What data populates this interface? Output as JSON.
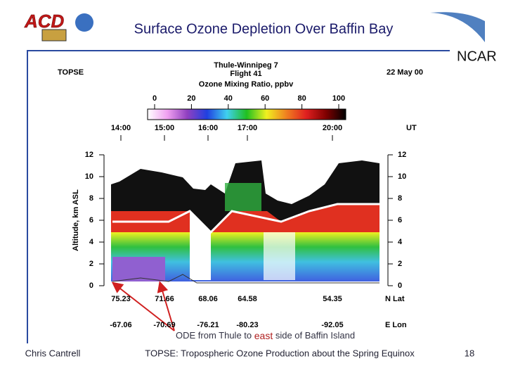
{
  "header": {
    "title": "Surface Ozone Depletion Over Baffin Bay",
    "logo_left": "ACD",
    "logo_right": "NCAR"
  },
  "figure": {
    "program": "TOPSE",
    "flight_route": "Thule-Winnipeg 7",
    "flight": "Flight 41",
    "date": "22 May 00",
    "colorbar_label": "Ozone Mixing Ratio, ppbv",
    "colorbar_ticks": [
      "0",
      "20",
      "40",
      "60",
      "80",
      "100"
    ],
    "time_ticks": [
      "14:00",
      "15:00",
      "16:00",
      "17:00",
      "20:00"
    ],
    "time_unit": "UT",
    "y_axis_label": "Altitude, km ASL",
    "altitude_ticks": [
      "0",
      "2",
      "4",
      "6",
      "8",
      "10",
      "12"
    ],
    "lat_ticks": [
      "75.23",
      "71.66",
      "68.06",
      "64.58",
      "54.35"
    ],
    "lat_label": "N Lat",
    "lon_ticks": [
      "-67.06",
      "-70.69",
      "-76.21",
      "-80.23",
      "-92.05"
    ],
    "lon_label": "E Lon"
  },
  "annotation": {
    "before": "ODE from Thule to ",
    "emphasis": "east",
    "after": " side of Baffin Island"
  },
  "footer": {
    "author": "Chris Cantrell",
    "title": "TOPSE: Tropospheric Ozone Production about the Spring Equinox",
    "page": "18"
  }
}
